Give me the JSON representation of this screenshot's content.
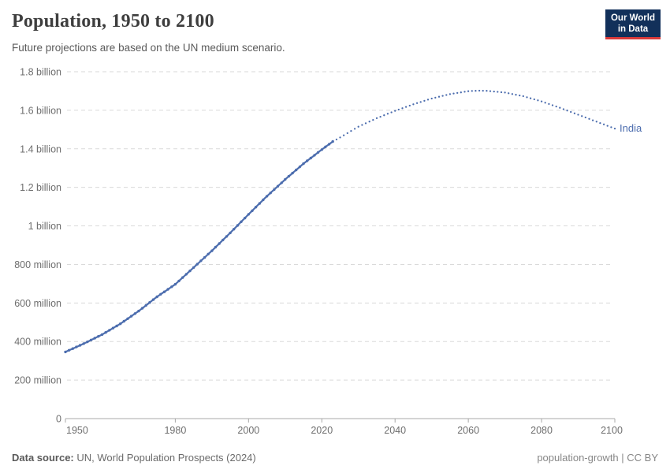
{
  "header": {
    "title": "Population, 1950 to 2100",
    "subtitle": "Future projections are based on the UN medium scenario.",
    "logo": {
      "line1": "Our World",
      "line2": "in Data",
      "bg_color": "#12305A",
      "accent_color": "#D93A3A"
    }
  },
  "chart_data": {
    "type": "line",
    "title": "Population, 1950 to 2100",
    "subtitle": "Future projections are based on the UN medium scenario.",
    "entity": "India",
    "unit": "people",
    "line_color": "#4C6DAE",
    "grid": true,
    "legend_position": "end-of-line-label",
    "x_range": [
      1950,
      2100
    ],
    "y_range_millions": [
      0,
      1800
    ],
    "x_ticks": [
      1950,
      1980,
      2000,
      2020,
      2040,
      2060,
      2080,
      2100
    ],
    "y_ticks": [
      {
        "value": 0,
        "label": "0"
      },
      {
        "value": 200,
        "label": "200 million"
      },
      {
        "value": 400,
        "label": "400 million"
      },
      {
        "value": 600,
        "label": "600 million"
      },
      {
        "value": 800,
        "label": "800 million"
      },
      {
        "value": 1000,
        "label": "1 billion"
      },
      {
        "value": 1200,
        "label": "1.2 billion"
      },
      {
        "value": 1400,
        "label": "1.4 billion"
      },
      {
        "value": 1600,
        "label": "1.6 billion"
      },
      {
        "value": 1800,
        "label": "1.8 billion"
      }
    ],
    "projection_start_year": 2023,
    "series": [
      {
        "name": "India",
        "values_in_millions": true,
        "points": [
          [
            1950,
            346
          ],
          [
            1955,
            389
          ],
          [
            1960,
            436
          ],
          [
            1965,
            492
          ],
          [
            1970,
            558
          ],
          [
            1975,
            632
          ],
          [
            1980,
            697
          ],
          [
            1985,
            784
          ],
          [
            1990,
            871
          ],
          [
            1995,
            964
          ],
          [
            2000,
            1060
          ],
          [
            2005,
            1154
          ],
          [
            2010,
            1241
          ],
          [
            2015,
            1323
          ],
          [
            2020,
            1396
          ],
          [
            2023,
            1438
          ],
          [
            2025,
            1459
          ],
          [
            2030,
            1515
          ],
          [
            2035,
            1559
          ],
          [
            2040,
            1597
          ],
          [
            2045,
            1631
          ],
          [
            2050,
            1661
          ],
          [
            2055,
            1684
          ],
          [
            2060,
            1699
          ],
          [
            2063,
            1702
          ],
          [
            2065,
            1701
          ],
          [
            2070,
            1692
          ],
          [
            2075,
            1673
          ],
          [
            2080,
            1646
          ],
          [
            2085,
            1613
          ],
          [
            2090,
            1577
          ],
          [
            2095,
            1541
          ],
          [
            2100,
            1505
          ]
        ]
      }
    ],
    "end_label": "India"
  },
  "footer": {
    "source_label": "Data source:",
    "source_text": "UN, World Population Prospects (2024)",
    "right_text": "population-growth | CC BY"
  }
}
